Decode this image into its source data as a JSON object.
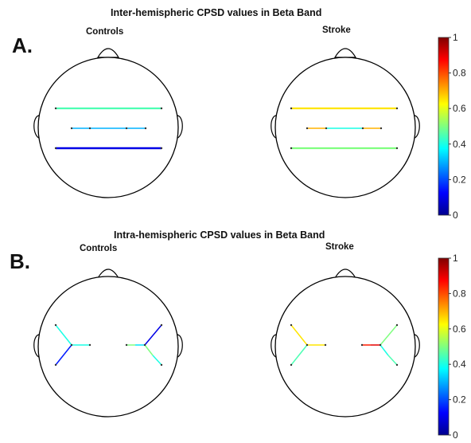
{
  "panel_a": {
    "letter": "A.",
    "title": "Inter-hemispheric CPSD values in Beta Band",
    "controls_label": "Controls",
    "stroke_label": "Stroke"
  },
  "panel_b": {
    "letter": "B.",
    "title": "Intra-hemispheric CPSD values in Beta Band",
    "controls_label": "Controls",
    "stroke_label": "Stroke"
  },
  "colorbar": {
    "ticks": [
      "0",
      "0.2",
      "0.4",
      "0.6",
      "0.8",
      "1"
    ],
    "colormap": "jet",
    "range": [
      0,
      1
    ]
  },
  "connectivity": {
    "inter_controls": [
      0.45,
      0.3,
      0.1
    ],
    "inter_stroke": [
      0.65,
      0.7,
      0.4,
      0.7,
      0.5
    ],
    "intra_controls": [
      0.4,
      0.4,
      0.15,
      0.5,
      0.35,
      0.1,
      0.5,
      0.4
    ],
    "intra_stroke": [
      0.65,
      0.65,
      0.45,
      0.85,
      0.9,
      0.5,
      0.4,
      0.45
    ]
  }
}
